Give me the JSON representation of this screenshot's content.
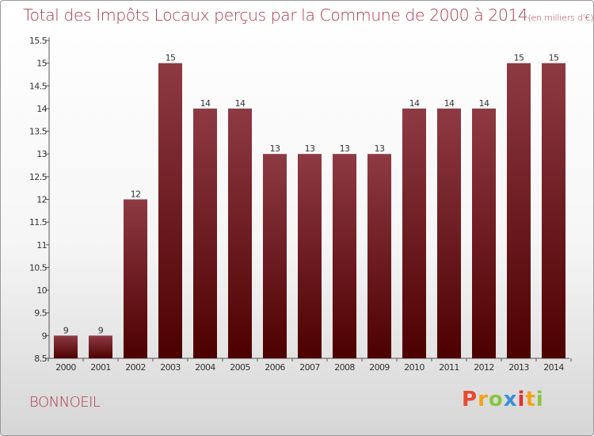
{
  "title": "Total des Impôts Locaux perçus par la Commune de 2000 à 2014",
  "unit_label": "(en milliers d'€)",
  "commune_name": "BONNOEIL",
  "logo": {
    "letters": [
      "P",
      "r",
      "o",
      "x",
      "i",
      "t",
      "i"
    ],
    "colors": [
      "#e64a2e",
      "#f2a31a",
      "#8bc540",
      "#3c8fd6",
      "#e2332f",
      "#f2a31a",
      "#8bc540"
    ]
  },
  "colors": {
    "bar_top": "#8e3a44",
    "bar_bottom": "#4d0000",
    "title": "#b03a4f"
  },
  "chart_data": {
    "type": "bar",
    "title": "Total des Impôts Locaux perçus par la Commune de 2000 à 2014",
    "categories": [
      "2000",
      "2001",
      "2002",
      "2003",
      "2004",
      "2005",
      "2006",
      "2007",
      "2008",
      "2009",
      "2010",
      "2011",
      "2012",
      "2013",
      "2014"
    ],
    "values": [
      9,
      9,
      12,
      15,
      14,
      14,
      13,
      13,
      13,
      13,
      14,
      14,
      14,
      15,
      15
    ],
    "data_labels": [
      "9",
      "9",
      "12",
      "15",
      "14",
      "14",
      "13",
      "13",
      "13",
      "13",
      "14",
      "14",
      "14",
      "15",
      "15"
    ],
    "ylim": [
      8.5,
      15.5
    ],
    "yticks": [
      8.5,
      9,
      9.5,
      10,
      10.5,
      11,
      11.5,
      12,
      12.5,
      13,
      13.5,
      14,
      14.5,
      15,
      15.5
    ],
    "ytick_labels": [
      "8.5",
      "9",
      "9.5",
      "10",
      "10.5",
      "11",
      "11.5",
      "12",
      "12.5",
      "13",
      "13.5",
      "14",
      "14.5",
      "15",
      "15.5"
    ],
    "grid": false,
    "legend": "none"
  }
}
